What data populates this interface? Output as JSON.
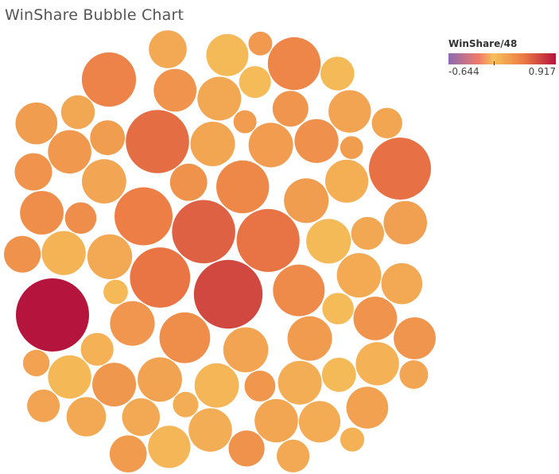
{
  "chart_data": {
    "type": "bubble",
    "title": "WinShare Bubble Chart",
    "color_legend": {
      "title": "WinShare/48",
      "min": -0.644,
      "max": 0.917,
      "min_label": "-0.644",
      "max_label": "0.917",
      "colors": [
        "#8d6bb5",
        "#f5a35c",
        "#f6c05a",
        "#ec7a45",
        "#b5143c"
      ]
    },
    "bubbles": [
      {
        "v": 0.917,
        "s": 1.0
      },
      {
        "v": 0.6,
        "s": 0.88
      },
      {
        "v": 0.45,
        "s": 0.75
      },
      {
        "v": 0.38,
        "s": 0.75
      },
      {
        "v": 0.36,
        "s": 0.72
      },
      {
        "v": 0.34,
        "s": 0.74
      },
      {
        "v": 0.33,
        "s": 0.68
      },
      {
        "v": 0.28,
        "s": 0.63
      },
      {
        "v": 0.26,
        "s": 0.55
      },
      {
        "v": 0.25,
        "s": 0.52
      },
      {
        "v": 0.24,
        "s": 0.52
      },
      {
        "v": 0.23,
        "s": 0.5
      },
      {
        "v": 0.22,
        "s": 0.48
      }
    ]
  }
}
